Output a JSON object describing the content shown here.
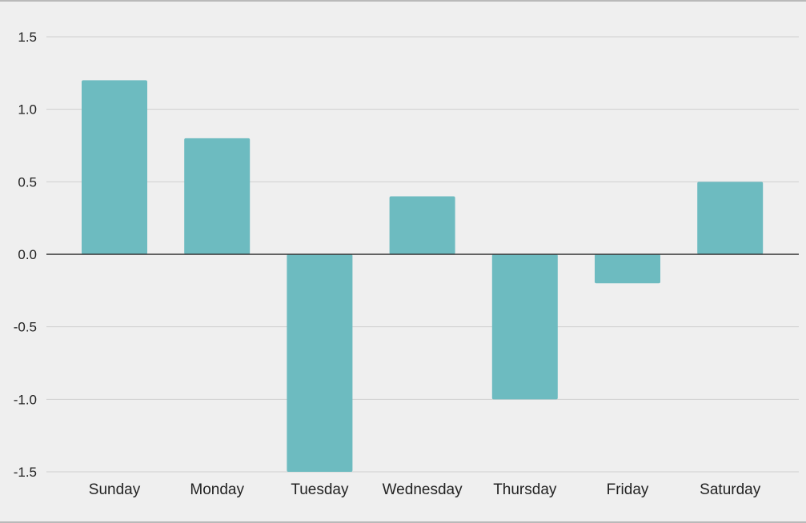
{
  "chart_data": {
    "type": "bar",
    "title": "",
    "xlabel": "",
    "ylabel": "",
    "categories": [
      "Sunday",
      "Monday",
      "Tuesday",
      "Wednesday",
      "Thursday",
      "Friday",
      "Saturday"
    ],
    "values": [
      1.2,
      0.8,
      -1.5,
      0.4,
      -1.0,
      -0.2,
      0.5
    ],
    "ylim": [
      -1.5,
      1.5
    ],
    "yticks": [
      "1.5",
      "1.0",
      "0.5",
      "0.0",
      "-0.5",
      "-1.0",
      "-1.5"
    ],
    "grid": true,
    "legend": "none",
    "colors": {
      "bar": "#6dbbc0",
      "grid": "#cfcfcf",
      "zero_line": "#333333",
      "background": "#efefef"
    }
  }
}
